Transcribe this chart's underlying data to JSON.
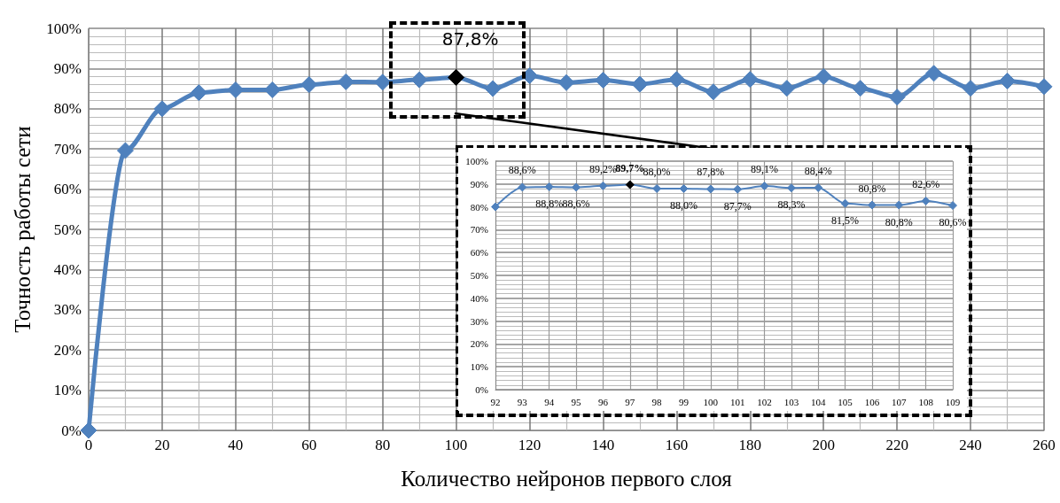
{
  "chart_data": [
    {
      "type": "line",
      "xlabel": "Количество нейронов первого слоя",
      "ylabel": "Точность работы сети",
      "x": [
        0,
        10,
        20,
        30,
        40,
        50,
        60,
        70,
        80,
        90,
        100,
        110,
        120,
        130,
        140,
        150,
        160,
        170,
        180,
        190,
        200,
        210,
        220,
        230,
        240,
        250,
        260
      ],
      "series": [
        {
          "color": "#4f81bd",
          "colors": [
            "#4f81bd",
            "#4f81bd",
            "#4f81bd",
            "#4f81bd",
            "#4f81bd",
            "#4f81bd",
            "#4f81bd",
            "#4f81bd",
            "#4f81bd",
            "#4f81bd",
            "#000000",
            "#4f81bd",
            "#4f81bd",
            "#4f81bd",
            "#4f81bd",
            "#4f81bd",
            "#4f81bd",
            "#4f81bd",
            "#4f81bd",
            "#4f81bd",
            "#4f81bd",
            "#4f81bd",
            "#4f81bd",
            "#4f81bd",
            "#4f81bd",
            "#4f81bd",
            "#4f81bd"
          ],
          "values": [
            0,
            69.6,
            80,
            84,
            84.7,
            84.7,
            86,
            86.7,
            86.6,
            87.2,
            87.8,
            85,
            88.2,
            86.5,
            87.1,
            86.1,
            87.3,
            84.2,
            87.3,
            85.1,
            88,
            85.1,
            82.9,
            88.8,
            85.1,
            86.9,
            85.5
          ]
        }
      ],
      "xlim": [
        0,
        260
      ],
      "xticks": [
        0,
        20,
        40,
        60,
        80,
        100,
        120,
        140,
        160,
        180,
        200,
        220,
        240,
        260
      ],
      "ylim": [
        0,
        100
      ],
      "yticks": [
        {
          "value": 0,
          "label": "0%"
        },
        {
          "value": 10,
          "label": "10%"
        },
        {
          "value": 20,
          "label": "20%"
        },
        {
          "value": 30,
          "label": "30%"
        },
        {
          "value": 40,
          "label": "40%"
        },
        {
          "value": 50,
          "label": "50%"
        },
        {
          "value": 60,
          "label": "60%"
        },
        {
          "value": 70,
          "label": "70%"
        },
        {
          "value": 80,
          "label": "80%"
        },
        {
          "value": 90,
          "label": "90%"
        },
        {
          "value": 100,
          "label": "100%"
        }
      ],
      "grid": true,
      "marker": "diamond",
      "line_style": "solid",
      "annotations": [
        {
          "text": "87,8%",
          "x": 100,
          "y": 87.8
        }
      ]
    },
    {
      "type": "line",
      "categories": [
        "92",
        "93",
        "94",
        "95",
        "96",
        "97",
        "98",
        "99",
        "100",
        "101",
        "102",
        "103",
        "104",
        "105",
        "106",
        "107",
        "108",
        "109"
      ],
      "series": [
        {
          "color": "#4f81bd",
          "colors": [
            "#4f81bd",
            "#4f81bd",
            "#4f81bd",
            "#4f81bd",
            "#4f81bd",
            "#000000",
            "#4f81bd",
            "#4f81bd",
            "#4f81bd",
            "#4f81bd",
            "#4f81bd",
            "#4f81bd",
            "#4f81bd",
            "#4f81bd",
            "#4f81bd",
            "#4f81bd",
            "#4f81bd",
            "#4f81bd"
          ],
          "values": [
            80,
            88.6,
            88.8,
            88.6,
            89.2,
            89.7,
            88,
            88,
            87.8,
            87.7,
            89.1,
            88.3,
            88.4,
            81.5,
            80.8,
            80.8,
            82.6,
            80.6
          ],
          "value_labels": [
            null,
            "88,6%",
            "88,8%",
            "88,6%",
            "89,2%",
            "89,7%",
            "88,0%",
            "88,0%",
            "87,8%",
            "87,7%",
            "89,1%",
            "88,3%",
            "88,4%",
            "81,5%",
            "80,8%",
            "80,8%",
            "82,6%",
            "80,6%"
          ]
        }
      ],
      "ylim": [
        0,
        100
      ],
      "yticks": [
        {
          "value": 0,
          "label": "0%"
        },
        {
          "value": 10,
          "label": "10%"
        },
        {
          "value": 20,
          "label": "20%"
        },
        {
          "value": 30,
          "label": "30%"
        },
        {
          "value": 40,
          "label": "40%"
        },
        {
          "value": 50,
          "label": "50%"
        },
        {
          "value": 60,
          "label": "60%"
        },
        {
          "value": 70,
          "label": "70%"
        },
        {
          "value": 80,
          "label": "80%"
        },
        {
          "value": 90,
          "label": "90%"
        },
        {
          "value": 100,
          "label": "100%"
        }
      ],
      "grid": true,
      "marker": "diamond",
      "line_style": "solid"
    }
  ]
}
